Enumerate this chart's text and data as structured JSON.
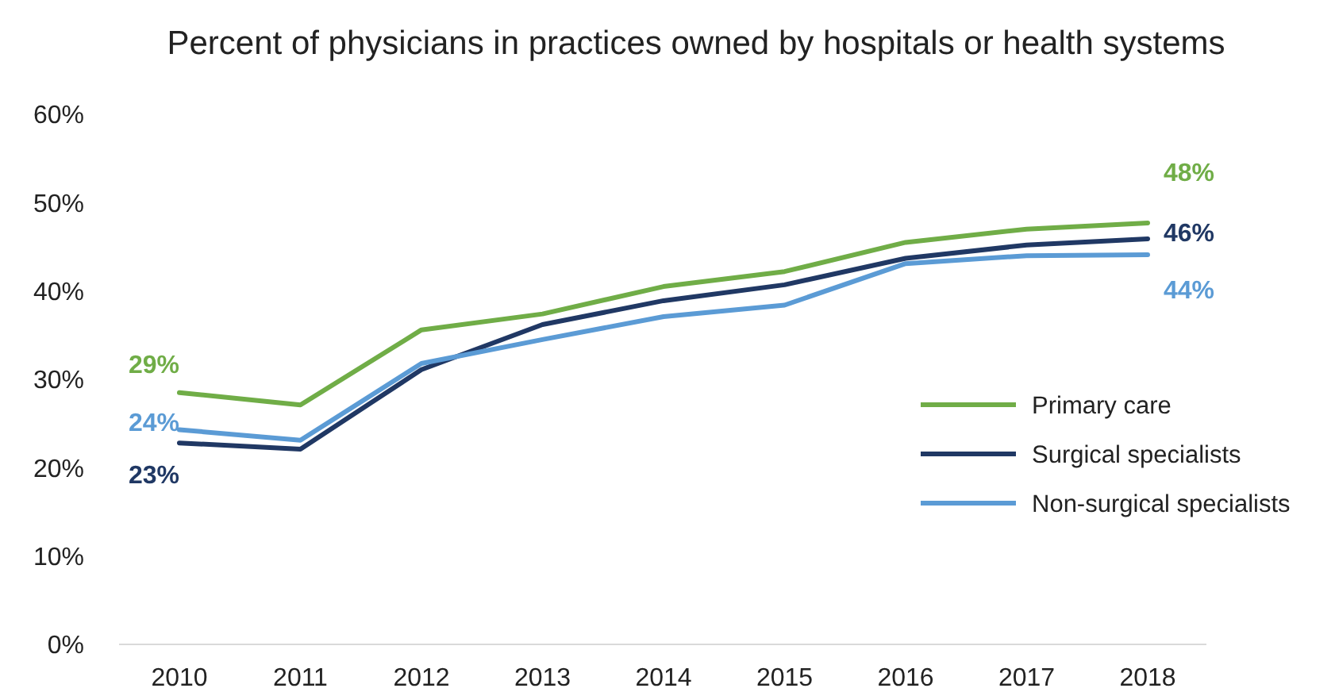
{
  "chart_data": {
    "type": "line",
    "title": "Percent of physicians in practices owned by hospitals or health systems",
    "categories": [
      "2010",
      "2011",
      "2012",
      "2013",
      "2014",
      "2015",
      "2016",
      "2017",
      "2018"
    ],
    "series": [
      {
        "name": "Primary care",
        "color": "#70ad47",
        "values": [
          28.5,
          27.1,
          35.6,
          37.4,
          40.5,
          42.2,
          45.5,
          47.0,
          47.7
        ],
        "value_labels": [
          "29%",
          null,
          null,
          null,
          null,
          null,
          null,
          null,
          "48%"
        ]
      },
      {
        "name": "Surgical specialists",
        "color": "#203864",
        "values": [
          22.8,
          22.1,
          31.1,
          36.2,
          38.9,
          40.7,
          43.7,
          45.2,
          45.9
        ],
        "value_labels": [
          "23%",
          null,
          null,
          null,
          null,
          null,
          null,
          null,
          "46%"
        ]
      },
      {
        "name": "Non-surgical specialists",
        "color": "#5b9bd5",
        "values": [
          24.3,
          23.1,
          31.8,
          34.5,
          37.1,
          38.4,
          43.1,
          44.0,
          44.1
        ],
        "value_labels": [
          "24%",
          null,
          null,
          null,
          null,
          null,
          null,
          null,
          "44%"
        ]
      }
    ],
    "ylim": [
      0,
      60
    ],
    "yticks": [
      {
        "value": 0,
        "label": "0%"
      },
      {
        "value": 10,
        "label": "10%"
      },
      {
        "value": 20,
        "label": "20%"
      },
      {
        "value": 30,
        "label": "30%"
      },
      {
        "value": 40,
        "label": "40%"
      },
      {
        "value": 50,
        "label": "50%"
      },
      {
        "value": 60,
        "label": "60%"
      }
    ],
    "grid": false,
    "legend": "right",
    "marker": "none",
    "line_style": "solid"
  }
}
